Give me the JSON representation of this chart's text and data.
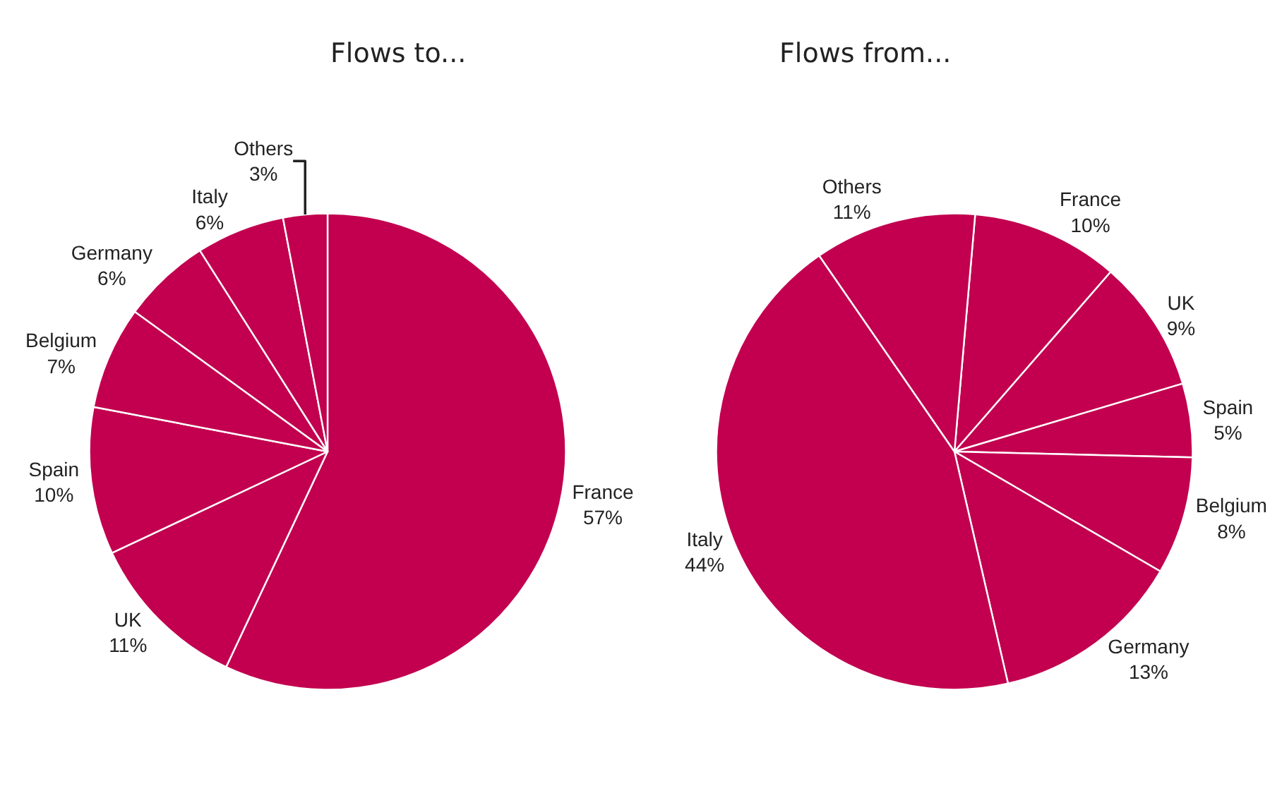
{
  "chart_data": [
    {
      "type": "pie",
      "title": "Flows to...",
      "categories": [
        "France",
        "UK",
        "Spain",
        "Belgium",
        "Germany",
        "Italy",
        "Others"
      ],
      "values": [
        57,
        11,
        10,
        7,
        6,
        6,
        3
      ],
      "value_labels": [
        "57%",
        "11%",
        "10%",
        "7%",
        "6%",
        "6%",
        "3%"
      ],
      "colors": [
        "#c2004f",
        "#c2004f",
        "#c2004f",
        "#c2004f",
        "#c2004f",
        "#c2004f",
        "#c2004f"
      ]
    },
    {
      "type": "pie",
      "title": "Flows from...",
      "categories": [
        "France",
        "UK",
        "Spain",
        "Belgium",
        "Germany",
        "Italy",
        "Others"
      ],
      "values": [
        10,
        9,
        5,
        8,
        13,
        44,
        11
      ],
      "value_labels": [
        "10%",
        "9%",
        "5%",
        "8%",
        "13%",
        "44%",
        "11%"
      ],
      "colors": [
        "#c2004f",
        "#c2004f",
        "#c2004f",
        "#c2004f",
        "#c2004f",
        "#c2004f",
        "#c2004f"
      ]
    }
  ]
}
